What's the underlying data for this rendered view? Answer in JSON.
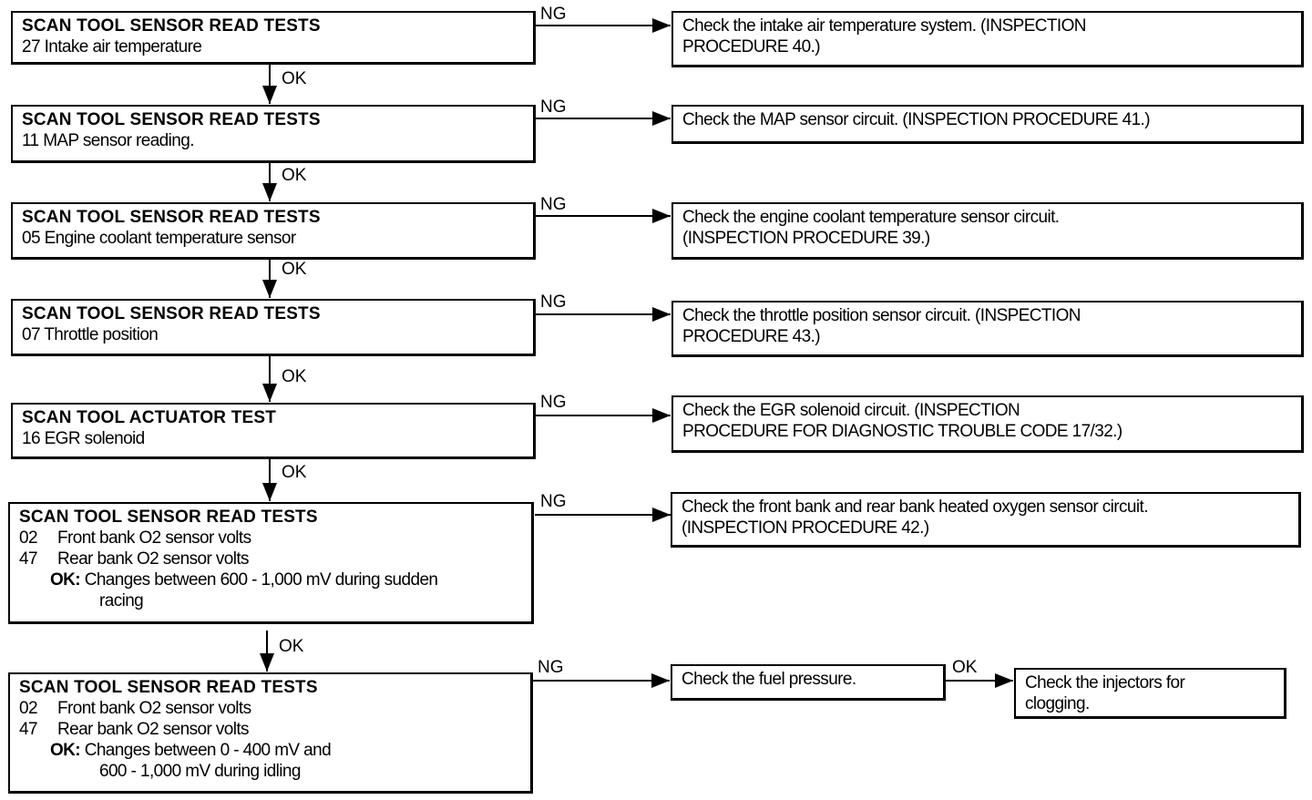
{
  "labels": {
    "ng": "NG",
    "ok": "OK"
  },
  "tests": [
    {
      "title": "SCAN TOOL SENSOR READ TESTS",
      "lines": [
        "27 Intake air temperature"
      ]
    },
    {
      "title": "SCAN TOOL SENSOR READ TESTS",
      "lines": [
        "11 MAP sensor reading."
      ]
    },
    {
      "title": "SCAN TOOL SENSOR READ TESTS",
      "lines": [
        "05 Engine coolant temperature sensor"
      ]
    },
    {
      "title": "SCAN TOOL SENSOR READ TESTS",
      "lines": [
        "07 Throttle position"
      ]
    },
    {
      "title": "SCAN TOOL ACTUATOR TEST",
      "lines": [
        "16 EGR solenoid"
      ]
    },
    {
      "title": "SCAN TOOL SENSOR READ TESTS",
      "items": [
        {
          "num": "02",
          "text": "Front bank O2 sensor volts"
        },
        {
          "num": "47",
          "text": "Rear bank O2 sensor volts"
        }
      ],
      "ok_label": "OK:",
      "ok_text": "Changes between 600 - 1,000 mV during sudden",
      "ok_cont": "racing"
    },
    {
      "title": "SCAN TOOL SENSOR READ TESTS",
      "items": [
        {
          "num": "02",
          "text": "Front bank O2 sensor volts"
        },
        {
          "num": "47",
          "text": "Rear bank O2 sensor volts"
        }
      ],
      "ok_label": "OK:",
      "ok_text": "Changes between 0 - 400 mV and",
      "ok_cont": "600 - 1,000 mV during idling"
    }
  ],
  "actions": [
    {
      "lines": [
        "Check the intake air temperature system. (INSPECTION",
        "PROCEDURE 40.)"
      ]
    },
    {
      "lines": [
        "Check the MAP sensor circuit. (INSPECTION PROCEDURE 41.)"
      ]
    },
    {
      "lines": [
        "Check the engine coolant temperature sensor circuit.",
        "(INSPECTION PROCEDURE 39.)"
      ]
    },
    {
      "lines": [
        "Check the throttle position sensor circuit. (INSPECTION",
        "PROCEDURE 43.)"
      ]
    },
    {
      "lines": [
        "Check the EGR solenoid circuit. (INSPECTION",
        "PROCEDURE FOR DIAGNOSTIC TROUBLE CODE 17/32.)"
      ]
    },
    {
      "lines": [
        "Check the front bank and rear bank heated oxygen sensor circuit.",
        "(INSPECTION PROCEDURE 42.)"
      ]
    },
    {
      "lines": [
        "Check the fuel pressure."
      ]
    },
    {
      "lines": [
        "Check the injectors for",
        "clogging."
      ]
    }
  ]
}
